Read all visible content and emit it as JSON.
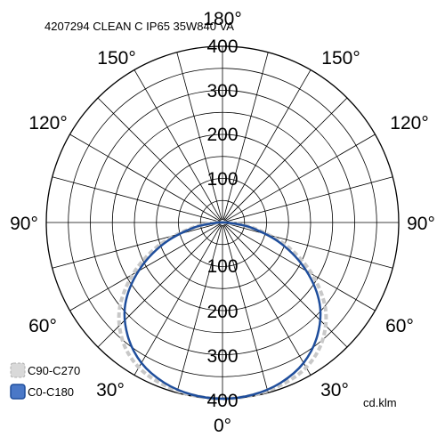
{
  "chart_data": {
    "type": "polar",
    "title": "4207294 CLEAN C IP65 35W840 VA",
    "unit_label": "cd.klm",
    "radial_ticks": [
      100,
      200,
      300,
      400
    ],
    "radial_max": 400,
    "angle_labels": {
      "top": "180°",
      "upper": "150°",
      "mid_upper": "120°",
      "side": "90°",
      "mid_lower": "60°",
      "lower": "30°",
      "bottom": "0°"
    },
    "legend_placement": "bottom-left",
    "series": [
      {
        "name": "C90-C270",
        "color": "#c8c8c8",
        "style": "dashed",
        "angles": [
          0,
          10,
          20,
          30,
          40,
          50,
          60,
          70,
          80,
          90
        ],
        "values": [
          400,
          398,
          392,
          380,
          352,
          305,
          235,
          155,
          70,
          10
        ]
      },
      {
        "name": "C0-C180",
        "color": "#1f4e9c",
        "style": "solid",
        "angles": [
          0,
          10,
          20,
          30,
          40,
          50,
          60,
          70,
          80,
          90
        ],
        "values": [
          400,
          397,
          387,
          368,
          335,
          288,
          220,
          143,
          65,
          10
        ]
      }
    ]
  }
}
